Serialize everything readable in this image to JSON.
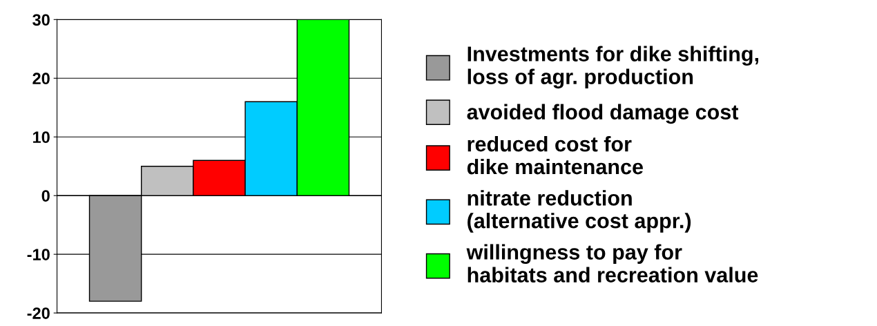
{
  "chart_data": {
    "type": "bar",
    "categories": [
      null
    ],
    "series": [
      {
        "name": "Investments for dike shifting,\nloss of agr. production",
        "color": "#999999",
        "values": [
          -18
        ]
      },
      {
        "name": "avoided flood damage cost",
        "color": "#c0c0c0",
        "values": [
          5
        ]
      },
      {
        "name": "reduced cost for\ndike maintenance",
        "color": "#ff0000",
        "values": [
          6
        ]
      },
      {
        "name": "nitrate reduction\n(alternative cost appr.)",
        "color": "#00ccff",
        "values": [
          16
        ]
      },
      {
        "name": "willingness to pay for\nhabitats and recreation value",
        "color": "#00ff00",
        "values": [
          30
        ]
      }
    ],
    "ylim": [
      -20,
      30
    ],
    "yticks": [
      -20,
      -10,
      0,
      10,
      20,
      30
    ],
    "grid": "y",
    "legend": "right",
    "tick_labels": "y"
  }
}
